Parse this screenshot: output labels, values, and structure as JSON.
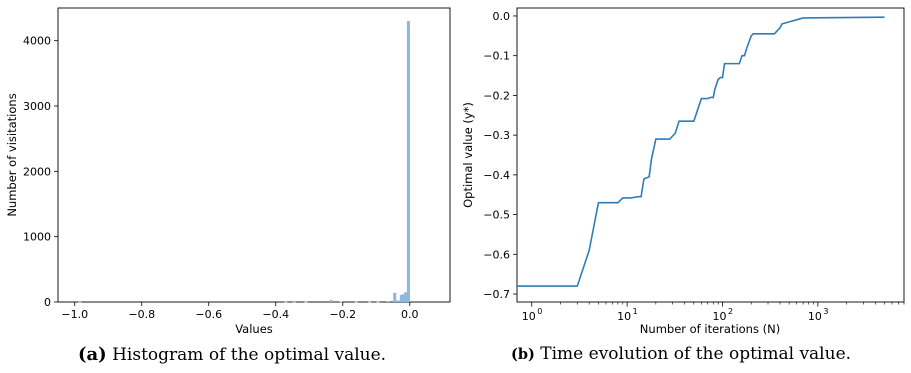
{
  "chart_data": [
    {
      "type": "bar",
      "xlabel": "Values",
      "ylabel": "Number of visitations",
      "xlim": [
        -1.05,
        0.12
      ],
      "ylim": [
        0,
        4500
      ],
      "xticks": [
        -1.0,
        -0.8,
        -0.6,
        -0.4,
        -0.2,
        0.0
      ],
      "xtick_labels": [
        "−1.0",
        "−0.8",
        "−0.6",
        "−0.4",
        "−0.2",
        "0.0"
      ],
      "yticks": [
        0,
        1000,
        2000,
        3000,
        4000
      ],
      "ytick_labels": [
        "0",
        "1000",
        "2000",
        "3000",
        "4000"
      ],
      "color": "#8fb8dc",
      "bars": [
        {
          "x": -0.985,
          "y": 3
        },
        {
          "x": -0.37,
          "y": 4
        },
        {
          "x": -0.345,
          "y": 3
        },
        {
          "x": -0.31,
          "y": 5
        },
        {
          "x": -0.235,
          "y": 30
        },
        {
          "x": -0.205,
          "y": 8
        },
        {
          "x": -0.16,
          "y": 6
        },
        {
          "x": -0.12,
          "y": 4
        },
        {
          "x": -0.095,
          "y": 6
        },
        {
          "x": -0.065,
          "y": 12
        },
        {
          "x": -0.045,
          "y": 140
        },
        {
          "x": -0.035,
          "y": 25
        },
        {
          "x": -0.025,
          "y": 110
        },
        {
          "x": -0.018,
          "y": 120
        },
        {
          "x": -0.012,
          "y": 150
        },
        {
          "x": -0.004,
          "y": 4300
        }
      ]
    },
    {
      "type": "line",
      "xlabel": "Number of iterations (N)",
      "ylabel": "Optimal value (y*)",
      "xscale": "log",
      "xlim": [
        0.7,
        8000
      ],
      "ylim": [
        -0.72,
        0.02
      ],
      "xticks": [
        1,
        10,
        100,
        1000
      ],
      "yticks": [
        0.0,
        -0.1,
        -0.2,
        -0.3,
        -0.4,
        -0.5,
        -0.6,
        -0.7
      ],
      "ytick_labels": [
        "0.0",
        "−0.1",
        "−0.2",
        "−0.3",
        "−0.4",
        "−0.5",
        "−0.6",
        "−0.7"
      ],
      "color": "#2f7db8",
      "series": [
        {
          "x": [
            0.7,
            3,
            4,
            5,
            6,
            8,
            9,
            11,
            13,
            14,
            15,
            17,
            18,
            20,
            28,
            32,
            35,
            45,
            50,
            60,
            63,
            70,
            75,
            80,
            83,
            90,
            95,
            100,
            105,
            110,
            120,
            150,
            160,
            170,
            180,
            190,
            200,
            210,
            220,
            240,
            280,
            350,
            400,
            420,
            500,
            700,
            5000
          ],
          "y": [
            -0.68,
            -0.68,
            -0.59,
            -0.47,
            -0.47,
            -0.47,
            -0.458,
            -0.458,
            -0.455,
            -0.455,
            -0.41,
            -0.405,
            -0.36,
            -0.31,
            -0.31,
            -0.295,
            -0.265,
            -0.265,
            -0.265,
            -0.208,
            -0.208,
            -0.208,
            -0.205,
            -0.205,
            -0.185,
            -0.16,
            -0.155,
            -0.155,
            -0.12,
            -0.12,
            -0.12,
            -0.12,
            -0.1,
            -0.1,
            -0.08,
            -0.065,
            -0.05,
            -0.045,
            -0.045,
            -0.045,
            -0.045,
            -0.045,
            -0.03,
            -0.02,
            -0.015,
            -0.005,
            -0.003
          ]
        }
      ]
    }
  ],
  "captions": {
    "a_label": "(a)",
    "a_text": "Histogram of the optimal value.",
    "b_label": "(b)",
    "b_text": "Time evolution of the optimal value."
  },
  "exponent_ticks": {
    "base": "10",
    "exps": [
      "0",
      "1",
      "2",
      "3"
    ]
  }
}
